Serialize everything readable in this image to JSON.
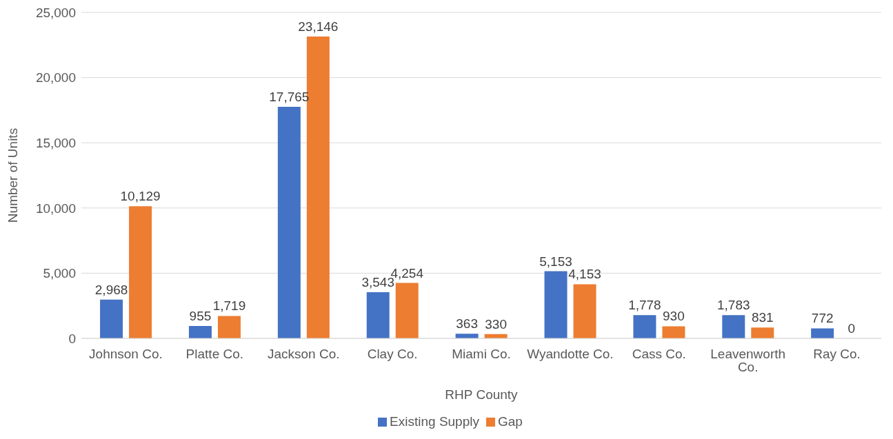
{
  "chart_data": {
    "type": "bar",
    "xlabel": "RHP County",
    "ylabel": "Number of Units",
    "categories": [
      "Johnson Co.",
      "Platte Co.",
      "Jackson Co.",
      "Clay Co.",
      "Miami Co.",
      "Wyandotte Co.",
      "Cass Co.",
      "Leavenworth Co.",
      "Ray Co."
    ],
    "series": [
      {
        "name": "Existing Supply",
        "color": "#4472c4",
        "values": [
          2968,
          955,
          17765,
          3543,
          363,
          5153,
          1778,
          1783,
          772
        ],
        "value_labels": [
          "2,968",
          "955",
          "17,765",
          "3,543",
          "363",
          "5,153",
          "1,778",
          "1,783",
          "772"
        ]
      },
      {
        "name": "Gap",
        "color": "#ed7d31",
        "values": [
          10129,
          1719,
          23146,
          4254,
          330,
          4153,
          930,
          831,
          0
        ],
        "value_labels": [
          "10,129",
          "1,719",
          "23,146",
          "4,254",
          "330",
          "4,153",
          "930",
          "831",
          "0"
        ]
      }
    ],
    "ylim": [
      0,
      25000
    ],
    "yticks": [
      {
        "value": 0,
        "label": "0"
      },
      {
        "value": 5000,
        "label": "5,000"
      },
      {
        "value": 10000,
        "label": "10,000"
      },
      {
        "value": 15000,
        "label": "15,000"
      },
      {
        "value": 20000,
        "label": "20,000"
      },
      {
        "value": 25000,
        "label": "25,000"
      }
    ],
    "grid": "y",
    "legend": "bottom"
  }
}
